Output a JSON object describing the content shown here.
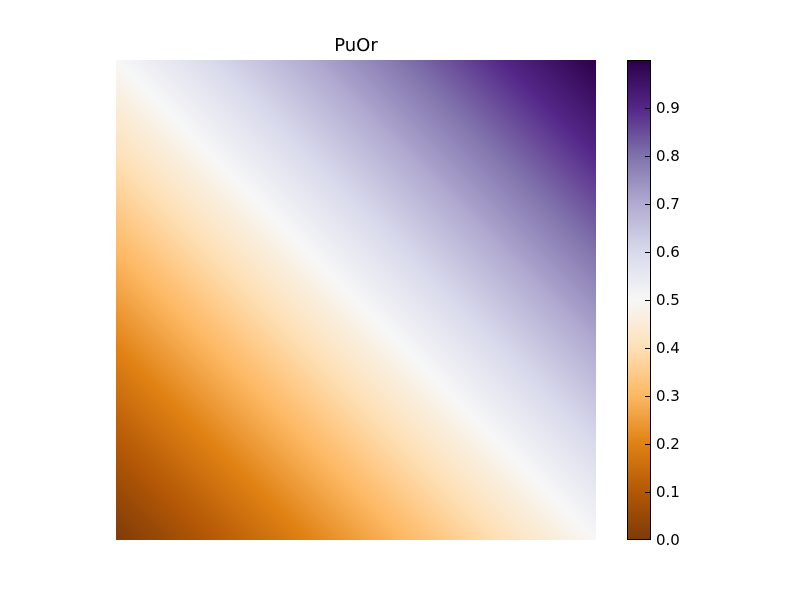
{
  "chart_data": {
    "type": "heatmap",
    "title": "PuOr",
    "xlabel": "",
    "ylabel": "",
    "colormap": "PuOr",
    "value_range": [
      0.0,
      1.0
    ],
    "gradient_description": "values increase linearly from bottom-left (0.0) to top-right (1.0)",
    "corner_values": {
      "bottom_left": 0.0,
      "bottom_right": 0.5,
      "top_left": 0.5,
      "top_right": 1.0
    },
    "grid": false,
    "axes_visible": false,
    "colorbar": {
      "position": "right",
      "ticks": [
        "0.0",
        "0.1",
        "0.2",
        "0.3",
        "0.4",
        "0.5",
        "0.6",
        "0.7",
        "0.8",
        "0.9"
      ]
    },
    "colors": {
      "0.0": "#7f3b08",
      "0.1": "#b35806",
      "0.2": "#e08214",
      "0.3": "#fdb863",
      "0.4": "#fee0b6",
      "0.5": "#f7f7f7",
      "0.6": "#d8daeb",
      "0.7": "#b2abd2",
      "0.8": "#8073ac",
      "0.9": "#542788",
      "1.0": "#2d004b"
    }
  }
}
